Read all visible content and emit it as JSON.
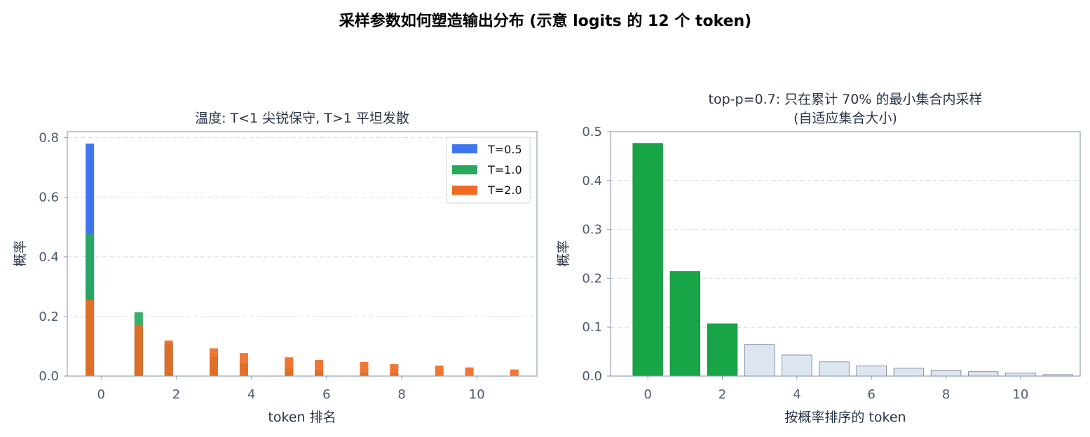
{
  "title": "采样参数如何塑造输出分布 (示意 logits 的 12 个 token)",
  "colors": {
    "t05": "#3f76ee",
    "t10": "#27a95b",
    "t20": "#ef6a23",
    "kept": "#17a548",
    "excluded": "#dde6ef",
    "axis": "#8fa2b8",
    "grid": "#d8dde4"
  },
  "chart_data": [
    {
      "type": "bar",
      "title": "温度: T<1 尖锐保守, T>1 平坦发散",
      "xlabel": "token 排名",
      "ylabel": "概率",
      "xlim": [
        -0.9,
        11.6
      ],
      "ylim": [
        0,
        0.82
      ],
      "xticks": [
        0,
        2,
        4,
        6,
        8,
        10
      ],
      "xtick_labels": [
        "0",
        "2",
        "4",
        "6",
        "8",
        "10"
      ],
      "yticks": [
        0,
        0.2,
        0.4,
        0.6,
        0.8
      ],
      "ytick_labels": [
        "0.0",
        "0.2",
        "0.4",
        "0.6",
        "0.8"
      ],
      "grid": "y-dashed",
      "legend": "top-right",
      "series": [
        {
          "name": "T=0.5",
          "color_key": "t05",
          "x": [
            -0.3,
            1.0,
            1.8
          ],
          "values": [
            0.78,
            0.17,
            0.11
          ]
        },
        {
          "name": "T=1.0",
          "color_key": "t10",
          "x": [
            -0.3,
            1.0,
            1.8,
            3.0,
            3.8,
            5.0,
            5.8,
            7.0,
            7.8
          ],
          "values": [
            0.476,
            0.214,
            0.107,
            0.065,
            0.043,
            0.027,
            0.021,
            0.013,
            0.01
          ]
        },
        {
          "name": "T=2.0",
          "color_key": "t20",
          "x": [
            -0.3,
            1.0,
            1.8,
            3.0,
            3.8,
            5.0,
            5.8,
            7.0,
            7.8,
            9.0,
            9.8,
            11.0
          ],
          "values": [
            0.256,
            0.172,
            0.119,
            0.093,
            0.077,
            0.063,
            0.054,
            0.047,
            0.04,
            0.035,
            0.029,
            0.022
          ]
        }
      ]
    },
    {
      "type": "bar",
      "title": "top-p=0.7: 只在累计 70% 的最小集合内采样",
      "subtitle": "(自适应集合大小)",
      "xlabel": "按概率排序的 token",
      "ylabel": "概率",
      "xlim": [
        -1,
        11.6
      ],
      "ylim": [
        0,
        0.5
      ],
      "xticks": [
        0,
        2,
        4,
        6,
        8,
        10
      ],
      "xtick_labels": [
        "0",
        "2",
        "4",
        "6",
        "8",
        "10"
      ],
      "yticks": [
        0,
        0.1,
        0.2,
        0.3,
        0.4,
        0.5
      ],
      "ytick_labels": [
        "0.0",
        "0.1",
        "0.2",
        "0.3",
        "0.4",
        "0.5"
      ],
      "grid": "y-dashed",
      "categories": [
        0,
        1,
        2,
        3,
        4,
        5,
        6,
        7,
        8,
        9,
        10,
        11
      ],
      "values": [
        0.476,
        0.214,
        0.107,
        0.065,
        0.043,
        0.029,
        0.021,
        0.016,
        0.012,
        0.009,
        0.006,
        0.003
      ],
      "kept_count": 3
    }
  ]
}
